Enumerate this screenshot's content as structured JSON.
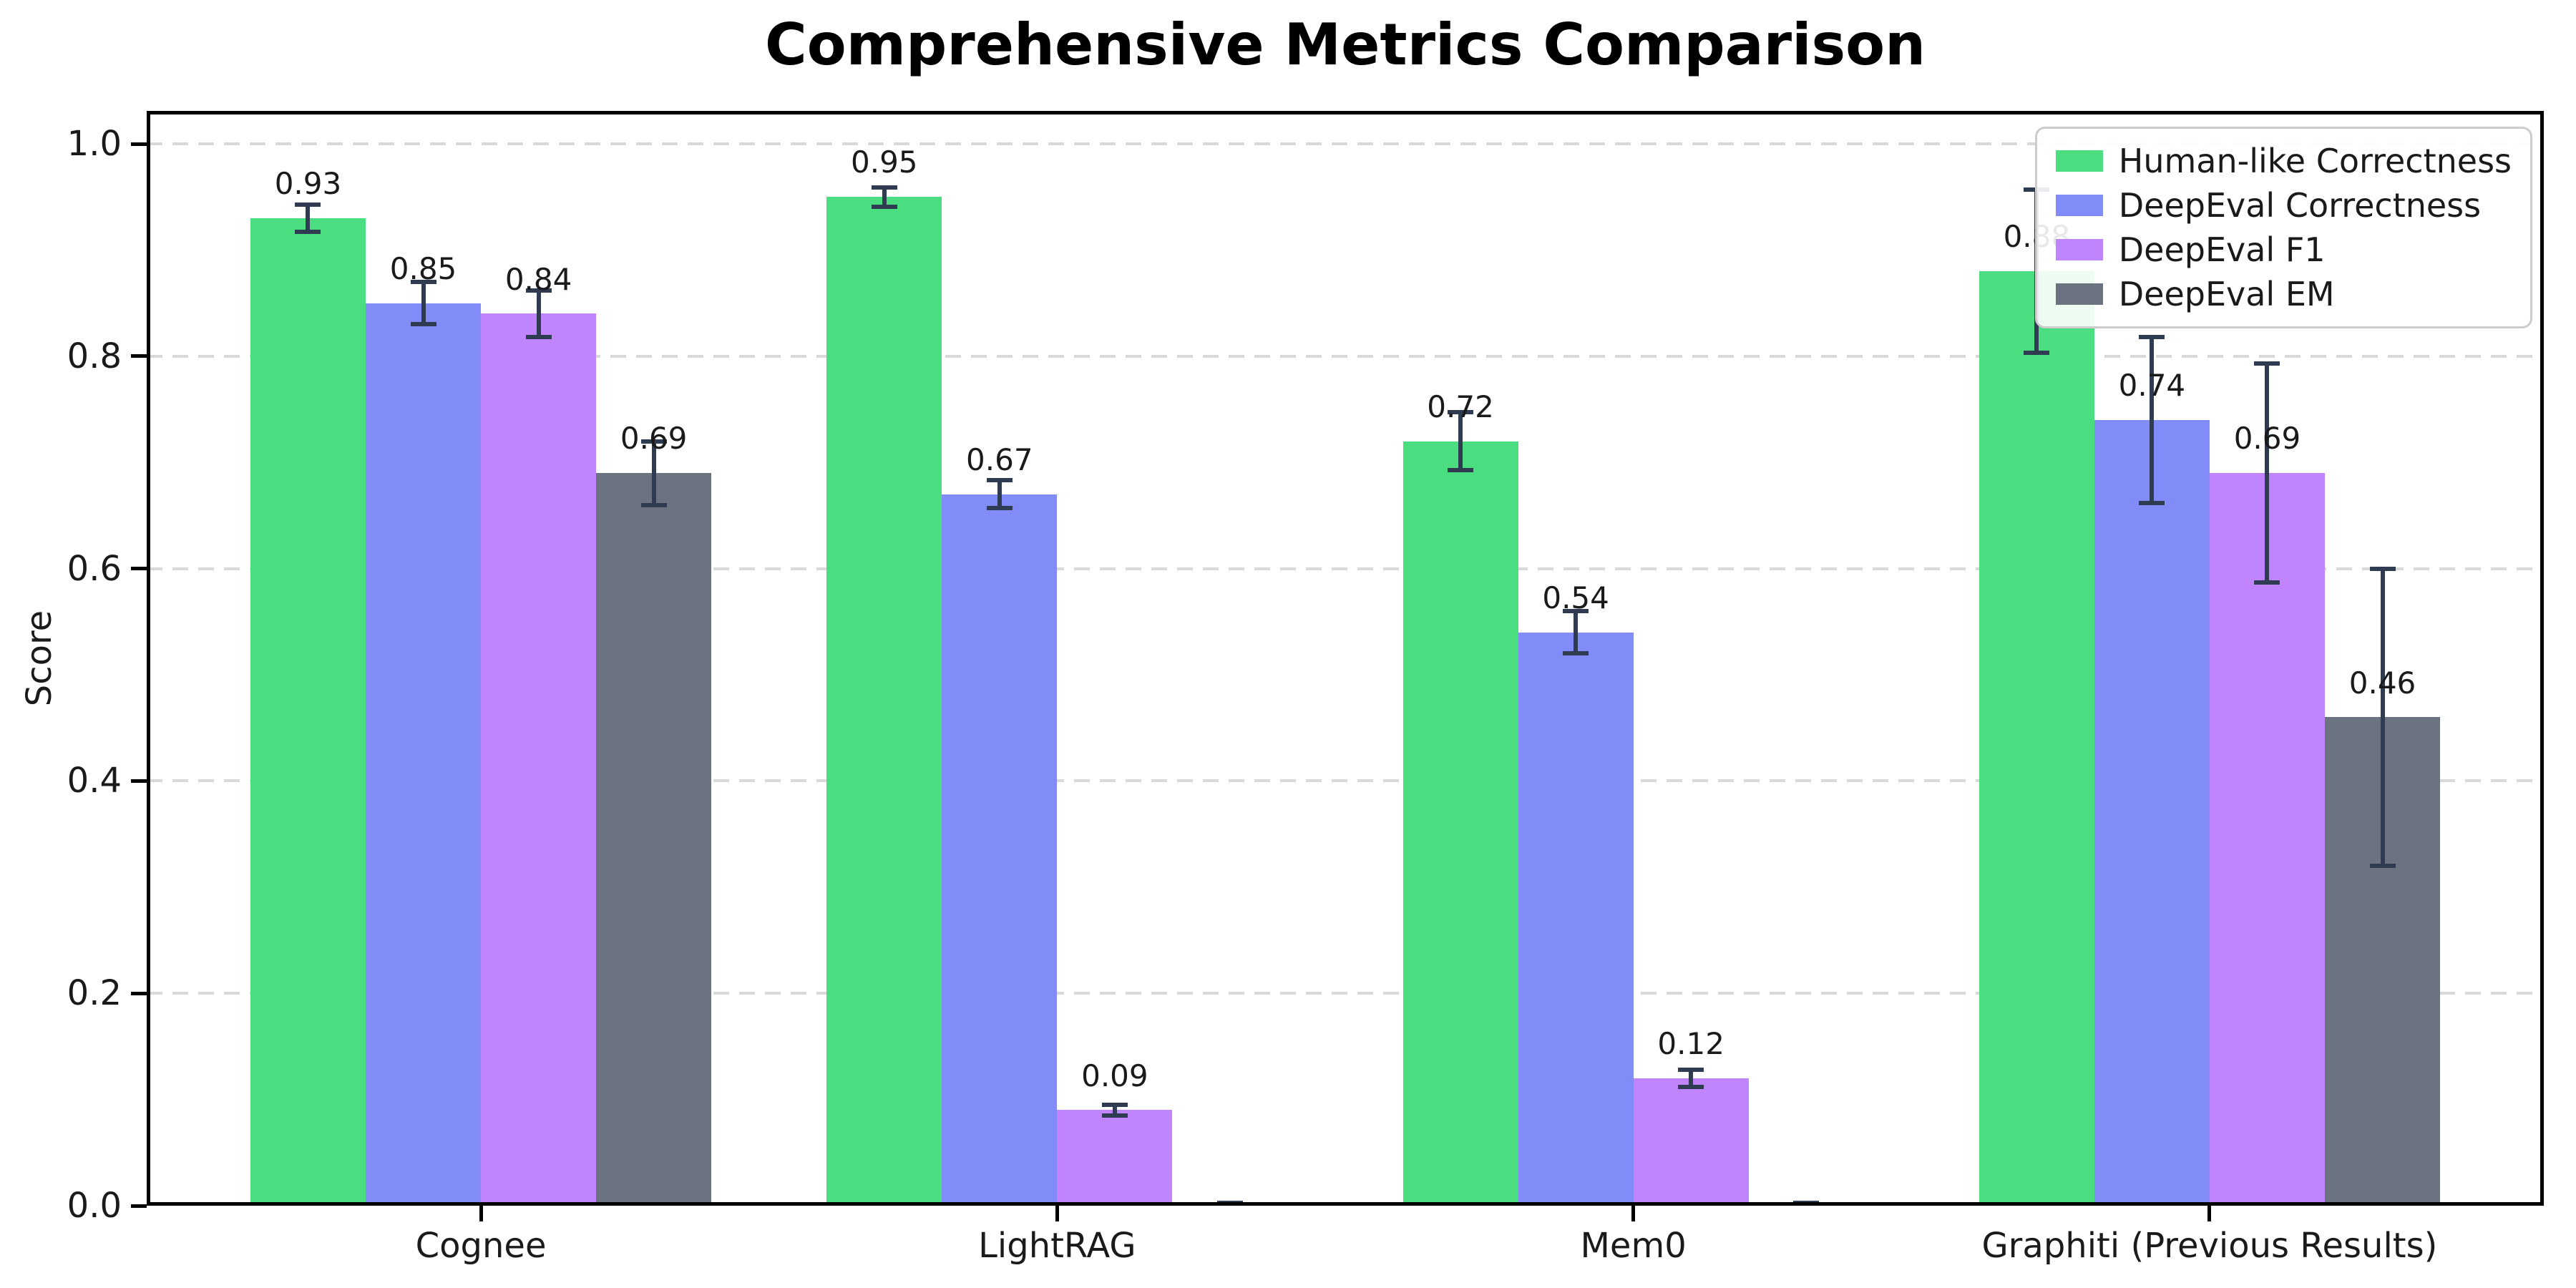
{
  "chart_data": {
    "type": "bar",
    "title": "Comprehensive Metrics Comparison",
    "ylabel": "Score",
    "xlabel": "",
    "categories": [
      "Cognee",
      "LightRAG",
      "Mem0",
      "Graphiti (Previous Results)"
    ],
    "series": [
      {
        "name": "Human-like Correctness",
        "color": "#4ade80",
        "values": [
          0.93,
          0.95,
          0.72,
          0.88
        ],
        "errors": [
          0.013,
          0.009,
          0.027,
          0.077
        ],
        "labels": [
          "0.93",
          "0.95",
          "0.72",
          "0.88"
        ]
      },
      {
        "name": "DeepEval Correctness",
        "color": "#818cf8",
        "values": [
          0.85,
          0.67,
          0.54,
          0.74
        ],
        "errors": [
          0.02,
          0.013,
          0.02,
          0.078
        ],
        "labels": [
          "0.85",
          "0.67",
          "0.54",
          "0.74"
        ]
      },
      {
        "name": "DeepEval F1",
        "color": "#c084fc",
        "values": [
          0.84,
          0.09,
          0.12,
          0.69
        ],
        "errors": [
          0.022,
          0.005,
          0.008,
          0.103
        ],
        "labels": [
          "0.84",
          "0.09",
          "0.12",
          "0.69"
        ]
      },
      {
        "name": "DeepEval EM",
        "color": "#6b7280",
        "values": [
          0.69,
          0.0,
          0.0,
          0.46
        ],
        "errors": [
          0.03,
          0.003,
          0.003,
          0.14
        ],
        "labels": [
          "0.69",
          "",
          "",
          "0.46"
        ]
      }
    ],
    "yticks": [
      "0.0",
      "0.2",
      "0.4",
      "0.6",
      "0.8",
      "1.0"
    ],
    "ytick_values": [
      0,
      0.2,
      0.4,
      0.6,
      0.8,
      1.0
    ],
    "ylim": [
      0,
      1.031
    ],
    "xlim": [
      -0.58,
      3.58
    ],
    "bar_width": 0.2,
    "grid": "horizontal-dashed",
    "legend_position": "upper-right",
    "errorbar_color": "#2f3b50",
    "grid_color": "#d9d9d9",
    "spine_color": "#000000"
  }
}
